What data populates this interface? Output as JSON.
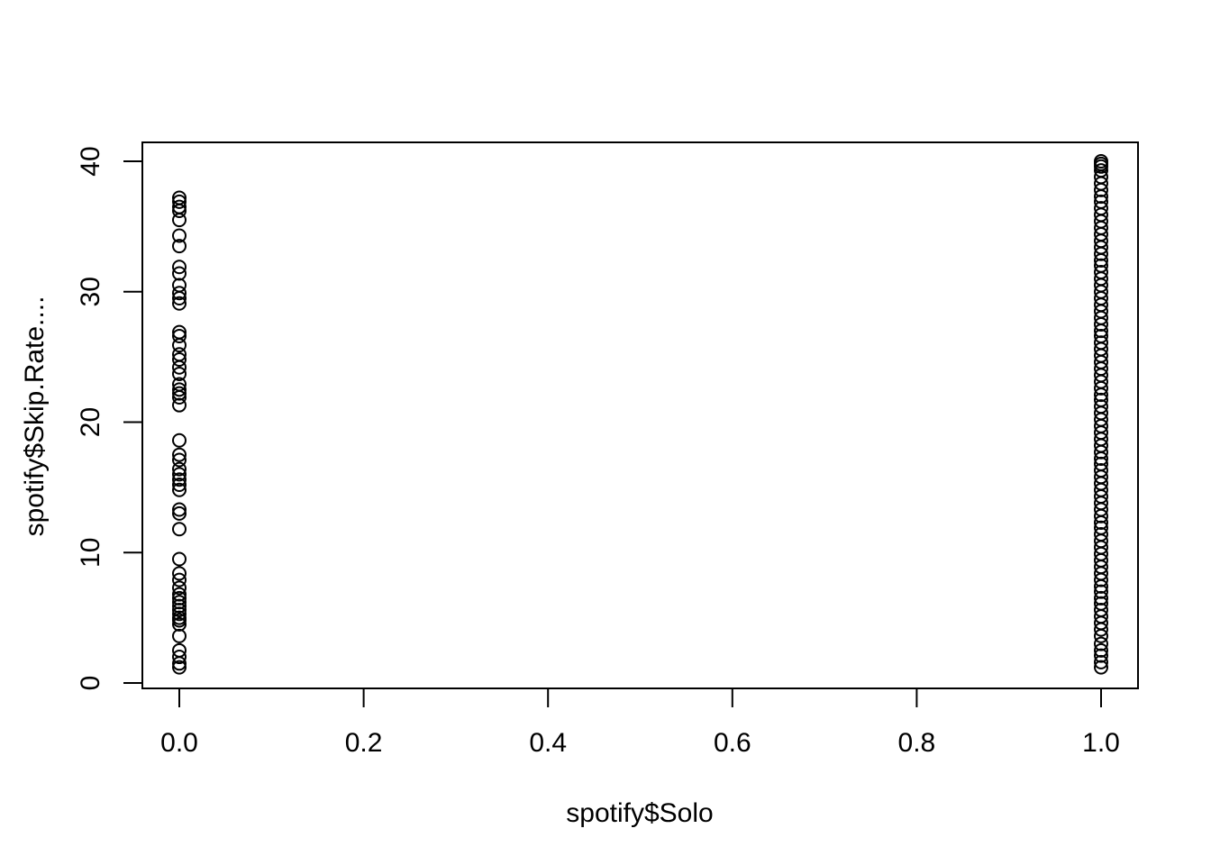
{
  "chart_data": {
    "type": "scatter",
    "title": "",
    "xlabel": "spotify$Solo",
    "ylabel": "spotify$Skip.Rate....",
    "xlim": [
      0,
      1
    ],
    "ylim": [
      0,
      40
    ],
    "x_ticks": [
      "0.0",
      "0.2",
      "0.4",
      "0.6",
      "0.8",
      "1.0"
    ],
    "y_ticks": [
      "0",
      "10",
      "20",
      "30",
      "40"
    ],
    "grid": false,
    "legend": "none",
    "series": [
      {
        "x": 0,
        "y": [
          1.2,
          1.5,
          2.0,
          2.5,
          3.6,
          4.5,
          4.8,
          5.0,
          5.3,
          5.6,
          5.9,
          6.2,
          6.5,
          6.8,
          7.3,
          7.9,
          8.4,
          9.5,
          11.8,
          13.0,
          13.3,
          14.8,
          15.2,
          15.6,
          16.0,
          16.4,
          17.1,
          17.5,
          18.6,
          21.3,
          21.9,
          22.2,
          22.5,
          22.9,
          23.7,
          24.2,
          24.8,
          25.2,
          25.9,
          26.6,
          26.9,
          29.1,
          29.5,
          29.9,
          30.5,
          31.4,
          31.9,
          33.5,
          34.3,
          35.5,
          36.2,
          36.5,
          36.9,
          37.2
        ]
      },
      {
        "x": 1,
        "y": [
          1.2,
          1.6,
          2.1,
          2.5,
          3.0,
          3.6,
          4.1,
          4.6,
          5.1,
          5.6,
          6.1,
          6.5,
          7.0,
          7.4,
          7.9,
          8.4,
          8.9,
          9.4,
          9.9,
          10.4,
          10.9,
          11.4,
          11.9,
          12.3,
          12.8,
          13.3,
          13.8,
          14.3,
          14.8,
          15.3,
          15.8,
          16.3,
          16.8,
          17.2,
          17.7,
          18.2,
          18.7,
          19.2,
          19.7,
          20.2,
          20.7,
          21.2,
          21.7,
          22.1,
          22.6,
          23.1,
          23.6,
          24.1,
          24.6,
          25.1,
          25.6,
          26.1,
          26.6,
          27.0,
          27.5,
          28.0,
          28.5,
          29.0,
          29.5,
          30.0,
          30.5,
          31.0,
          31.5,
          32.0,
          32.4,
          32.9,
          33.4,
          33.9,
          34.4,
          34.9,
          35.4,
          35.9,
          36.4,
          36.9,
          37.3,
          37.8,
          38.3,
          38.8,
          39.3,
          39.6,
          39.8,
          40.0
        ]
      }
    ]
  }
}
